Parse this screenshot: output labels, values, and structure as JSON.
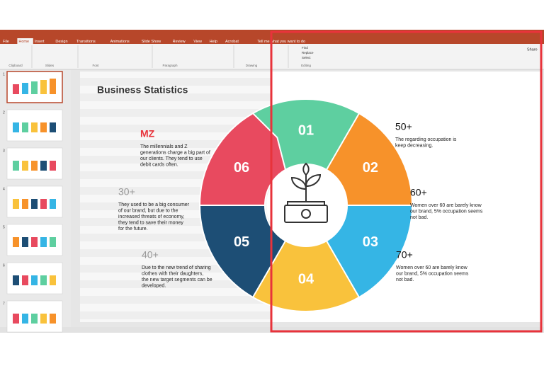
{
  "ribbon": {
    "tabs": [
      "File",
      "Home",
      "Insert",
      "Design",
      "Transitions",
      "Animations",
      "Slide Show",
      "Review",
      "View",
      "Help",
      "Acrobat"
    ],
    "tell_me": "Tell me what you want to do",
    "share": "Share",
    "groups": [
      "Clipboard",
      "Slides",
      "Font",
      "Paragraph",
      "Drawing",
      "Editing"
    ],
    "editing": [
      "Find",
      "Replace",
      "Select"
    ]
  },
  "thumbnails": [
    "1",
    "2",
    "3",
    "4",
    "5",
    "6",
    "7"
  ],
  "slide": {
    "title": "Business Statistics",
    "left_items": [
      {
        "heading": "MZ",
        "lines": [
          "The millennials and Z",
          "generations charge a big part of",
          "our clients. They tend to use",
          "debit cards often."
        ]
      },
      {
        "heading": "30+",
        "lines": [
          "They used to be a big consumer",
          "of our brand, but due to the",
          "increased  threats of economy,",
          "they tend to save their money",
          "for the future."
        ]
      },
      {
        "heading": "40+",
        "lines": [
          "Due to the new trend of sharing",
          "clothes with their daughters,",
          "the new target segments can be",
          "developed."
        ]
      }
    ],
    "right_items": [
      {
        "heading": "50+",
        "lines": [
          "The regarding occupation is",
          "keep decreasing."
        ]
      },
      {
        "heading": "60+",
        "lines": [
          "Women over 60 are barely know",
          "our brand, 5% occupation seems",
          "not bad."
        ]
      },
      {
        "heading": "70+",
        "lines": [
          "Women over 60 are barely know",
          "our brand, 5% occupation seems",
          "not bad."
        ]
      }
    ],
    "segments": [
      "01",
      "02",
      "03",
      "04",
      "05",
      "06"
    ]
  }
}
